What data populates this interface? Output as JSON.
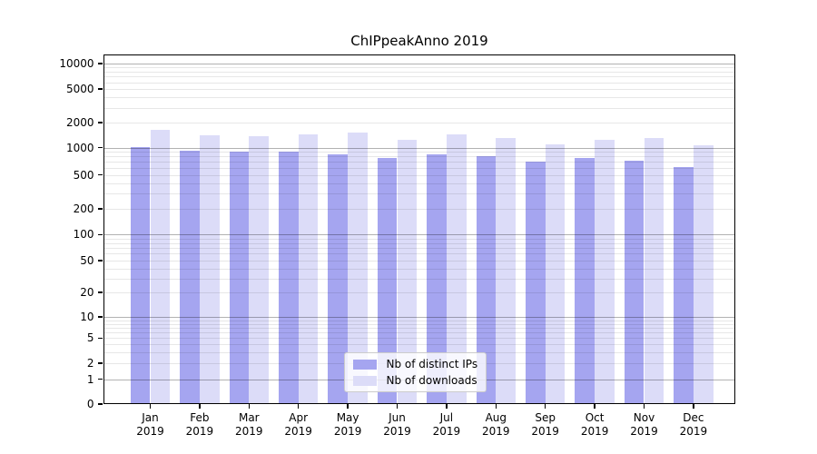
{
  "chart_data": {
    "type": "bar",
    "title": "ChIPpeakAnno 2019",
    "categories": [
      "Jan 2019",
      "Feb 2019",
      "Mar 2019",
      "Apr 2019",
      "May 2019",
      "Jun 2019",
      "Jul 2019",
      "Aug 2019",
      "Sep 2019",
      "Oct 2019",
      "Nov 2019",
      "Dec 2019"
    ],
    "series": [
      {
        "name": "Nb of distinct IPs",
        "color": "#a5a5f0",
        "values": [
          1010,
          930,
          900,
          900,
          850,
          770,
          850,
          800,
          700,
          770,
          725,
          610
        ]
      },
      {
        "name": "Nb of downloads",
        "color": "#dcdcf8",
        "values": [
          1620,
          1400,
          1360,
          1430,
          1530,
          1230,
          1430,
          1300,
          1090,
          1240,
          1315,
          1070
        ]
      }
    ],
    "xlabel": "",
    "ylabel": "",
    "yscale": "log",
    "ylim": [
      0,
      10000
    ],
    "y_ticks": [
      0,
      1,
      2,
      5,
      10,
      20,
      50,
      100,
      200,
      500,
      1000,
      2000,
      5000,
      10000
    ],
    "grid": true,
    "legend_position": "lower center",
    "background": "#ffffff"
  }
}
